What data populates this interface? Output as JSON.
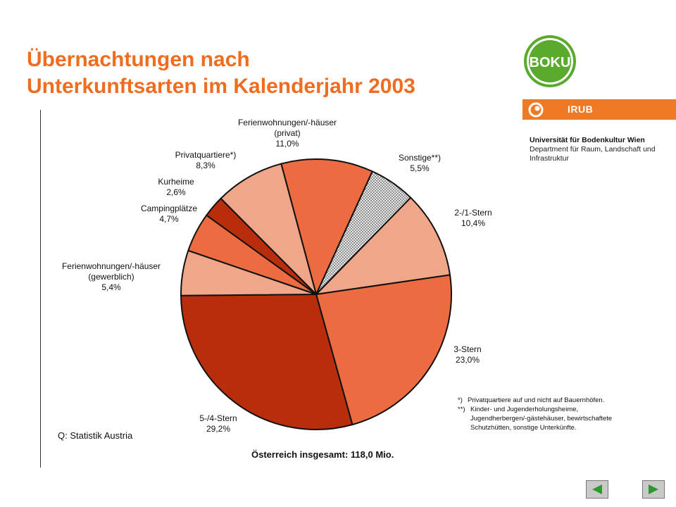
{
  "title": {
    "line1": "Übernachtungen nach",
    "line2": "Unterkunftsarten im Kalenderjahr 2003"
  },
  "logo": {
    "boku_text": "BOKU",
    "irub_text": "IRUB",
    "university": "Universität für Bodenkultur Wien",
    "department": "Department für Raum, Landschaft und Infrastruktur"
  },
  "colors": {
    "accent": "#f06d1f",
    "dark_red": "#b82e0c",
    "orange": "#ec6b40",
    "salmon": "#f0a688",
    "logo_green": "#5aaa2e"
  },
  "chart_data": {
    "type": "pie",
    "title": "",
    "total_label": "Österreich insgesamt: 118,0 Mio.",
    "source": "Q: Statistik Austria",
    "slices": [
      {
        "label_lines": [
          "Ferienwohnungen/-häuser",
          "(privat)",
          "11,0%"
        ],
        "value": 11.0,
        "color": "#ec6b40"
      },
      {
        "label_lines": [
          "Sonstige**)",
          "5,5%"
        ],
        "value": 5.5,
        "color": "pattern"
      },
      {
        "label_lines": [
          "2-/1-Stern",
          "10,4%"
        ],
        "value": 10.4,
        "color": "#f0a688"
      },
      {
        "label_lines": [
          "3-Stern",
          "23,0%"
        ],
        "value": 23.0,
        "color": "#ec6b40"
      },
      {
        "label_lines": [
          "5-/4-Stern",
          "29,2%"
        ],
        "value": 29.2,
        "color": "#b82e0c"
      },
      {
        "label_lines": [
          "Ferienwohnungen/-häuser",
          "(gewerblich)",
          "5,4%"
        ],
        "value": 5.4,
        "color": "#f0a688"
      },
      {
        "label_lines": [
          "Campingplätze",
          "4,7%"
        ],
        "value": 4.7,
        "color": "#ec6b40"
      },
      {
        "label_lines": [
          "Kurheime",
          "2,6%"
        ],
        "value": 2.6,
        "color": "#b82e0c"
      },
      {
        "label_lines": [
          "Privatquartiere*)",
          "8,3%"
        ],
        "value": 8.3,
        "color": "#f0a688"
      }
    ],
    "notes": [
      {
        "mark": "*)",
        "text": "Privatquartiere auf und nicht auf Bauernhöfen."
      },
      {
        "mark": "**)",
        "text": "Kinder- und Jugenderholungsheime, Jugendherbergen/-gästehäuser, bewirtschaftete Schutzhütten, sonstige Unterkünfte."
      }
    ]
  },
  "nav": {
    "prev_icon": "triangle-left-icon",
    "next_icon": "triangle-right-icon"
  }
}
